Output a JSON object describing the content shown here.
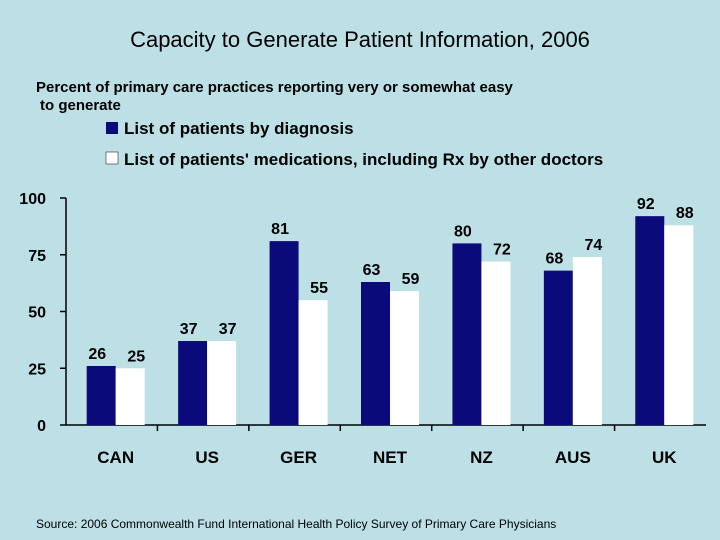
{
  "chart_data": {
    "type": "bar",
    "title": "Capacity to Generate Patient Information, 2006",
    "subtitle": "Percent of primary care practices reporting very or somewhat easy to generate",
    "subtitle_lines": [
      "Percent of primary care practices reporting very or somewhat easy",
      "to generate"
    ],
    "categories": [
      "CAN",
      "US",
      "GER",
      "NET",
      "NZ",
      "AUS",
      "UK"
    ],
    "series": [
      {
        "name": "List of patients by diagnosis",
        "values": [
          26,
          37,
          81,
          63,
          80,
          68,
          92
        ],
        "color": "#0a0a7a"
      },
      {
        "name": "List of patients' medications, including Rx by other doctors",
        "values": [
          25,
          37,
          55,
          59,
          72,
          74,
          88
        ],
        "color": "#ffffff"
      }
    ],
    "ylim": [
      0,
      100
    ],
    "yticks": [
      0,
      25,
      50,
      75,
      100
    ],
    "grid": false,
    "legend_position": "top-right",
    "source": "Source: 2006 Commonwealth Fund International Health Policy Survey of Primary Care Physicians"
  }
}
